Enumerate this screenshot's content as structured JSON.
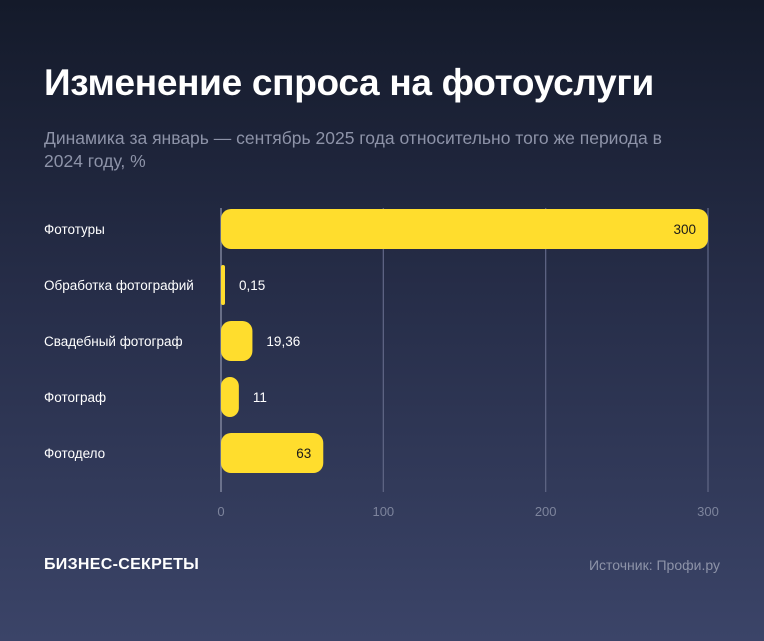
{
  "title": "Изменение спроса на фотоуслуги",
  "subtitle": "Динамика за январь — сентябрь 2025 года относительно того же периода в 2024 году, %",
  "brand": "БИЗНЕС-СЕКРЕТЫ",
  "source": "Источник: Профи.ру",
  "colors": {
    "bar": "#ffdd2d",
    "background_top": "#141a2a",
    "background_bottom": "#3b4468",
    "grid": "#6b7290"
  },
  "chart_data": {
    "type": "bar",
    "orientation": "horizontal",
    "categories": [
      "Фототуры",
      "Обработка фотографий",
      "Свадебный фотограф",
      "Фотограф",
      "Фотодело"
    ],
    "values": [
      300,
      0.15,
      19.36,
      11,
      63
    ],
    "value_labels": [
      "300",
      "0,15",
      "19,36",
      "11",
      "63"
    ],
    "xlim": [
      0,
      300
    ],
    "xticks": [
      0,
      100,
      200,
      300
    ],
    "xtick_labels": [
      "0",
      "100",
      "200",
      "300"
    ],
    "grid": true,
    "title": "Изменение спроса на фотоуслуги",
    "xlabel": "",
    "ylabel": ""
  }
}
